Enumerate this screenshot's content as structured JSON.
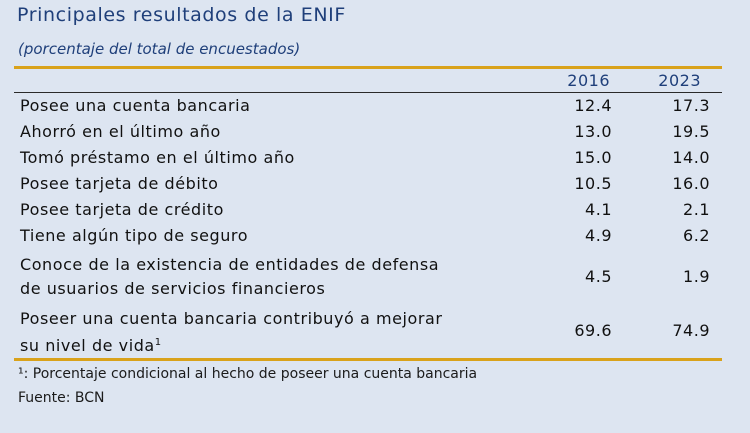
{
  "title": "Principales resultados de la ENIF",
  "subtitle": "(porcentaje del total de encuestados)",
  "columns": [
    "2016",
    "2023"
  ],
  "rows": [
    {
      "label": "Posee una cuenta bancaria",
      "v2016": "12.4",
      "v2023": "17.3"
    },
    {
      "label": "Ahorró en el último año",
      "v2016": "13.0",
      "v2023": "19.5"
    },
    {
      "label": "Tomó préstamo en el último año",
      "v2016": "15.0",
      "v2023": "14.0"
    },
    {
      "label": "Posee tarjeta de débito",
      "v2016": "10.5",
      "v2023": "16.0"
    },
    {
      "label": "Posee tarjeta de crédito",
      "v2016": "4.1",
      "v2023": "2.1"
    },
    {
      "label": "Tiene algún tipo de seguro",
      "v2016": "4.9",
      "v2023": "6.2"
    },
    {
      "label_line1": "Conoce de la existencia de entidades de defensa",
      "label_line2": "de usuarios de servicios financieros",
      "v2016": "4.5",
      "v2023": "1.9"
    },
    {
      "label_line1": "Poseer una cuenta bancaria contribuyó a mejorar",
      "label_line2": "su nivel de vida",
      "label_sup": "1",
      "v2016": "69.6",
      "v2023": "74.9"
    }
  ],
  "footnotes": {
    "note1": "¹: Porcentaje condicional al hecho de poseer una cuenta bancaria",
    "source": "Fuente: BCN"
  },
  "colors": {
    "accent_rule": "#d9a21b",
    "heading": "#1f3f7a",
    "background": "#dde5f1"
  }
}
